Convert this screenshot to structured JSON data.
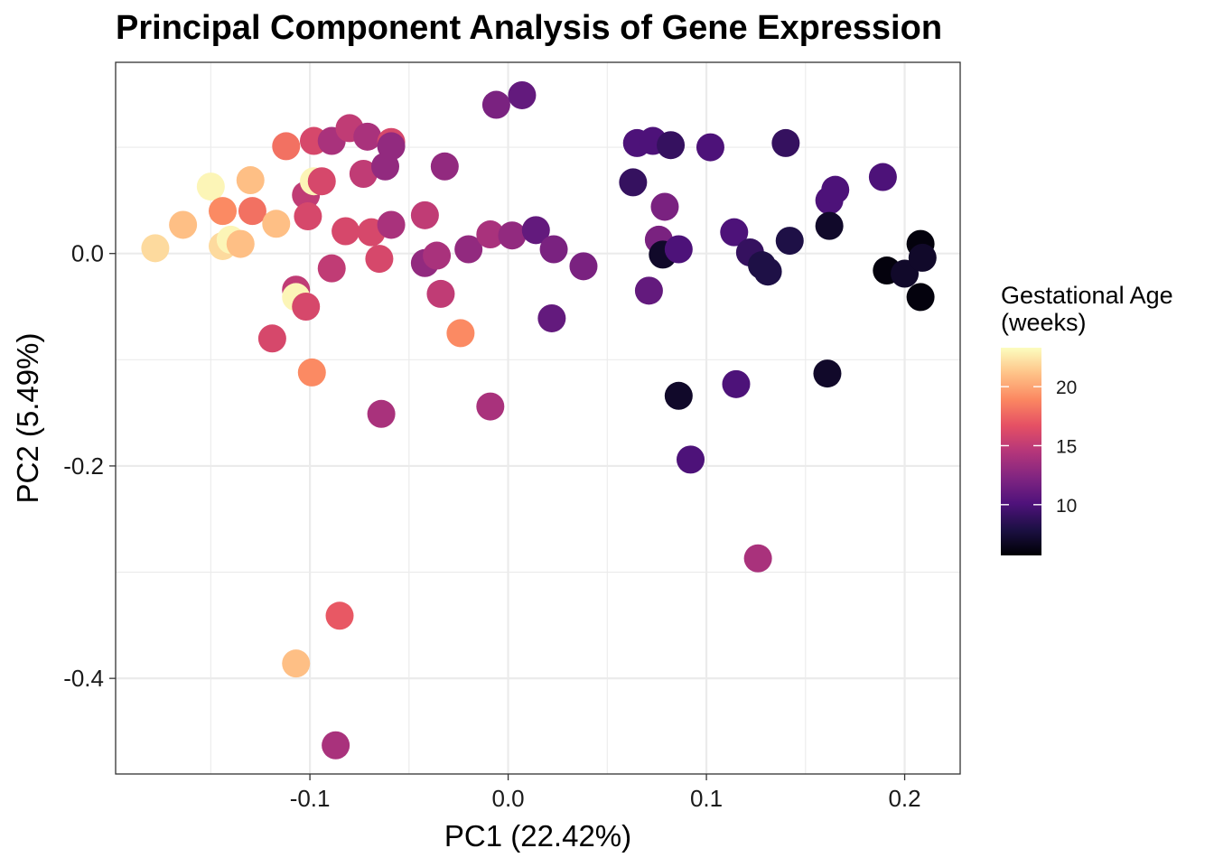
{
  "chart_data": {
    "type": "scatter",
    "title": "Principal Component Analysis of Gene Expression",
    "xlabel": "PC1 (22.42%)",
    "ylabel": "PC2 (5.49%)",
    "xlim": [
      -0.198,
      0.228
    ],
    "ylim": [
      -0.49,
      0.18
    ],
    "x_ticks": [
      -0.1,
      0.0,
      0.1,
      0.2
    ],
    "x_tick_labels": [
      "-0.1",
      "0.0",
      "0.1",
      "0.2"
    ],
    "y_ticks": [
      -0.4,
      -0.2,
      0.0
    ],
    "y_tick_labels": [
      "-0.4",
      "-0.2",
      "0.0"
    ],
    "grid": true,
    "legend": {
      "title_lines": [
        "Gestational Age",
        "(weeks)"
      ],
      "placement": "right",
      "colorbar_range": [
        5.7,
        23.3
      ],
      "ticks": [
        10,
        15,
        20
      ],
      "tick_labels": [
        "10",
        "15",
        "20"
      ]
    },
    "color_scale": [
      "#000004",
      "#1c1044",
      "#4f127b",
      "#812581",
      "#b5367a",
      "#e55064",
      "#fb8761",
      "#fec287",
      "#fcfdbf"
    ],
    "points": [
      {
        "x": -0.178,
        "y": 0.005,
        "age": 22
      },
      {
        "x": -0.164,
        "y": 0.027,
        "age": 21
      },
      {
        "x": -0.15,
        "y": 0.063,
        "age": 23
      },
      {
        "x": -0.144,
        "y": 0.04,
        "age": 19
      },
      {
        "x": -0.144,
        "y": 0.007,
        "age": 22
      },
      {
        "x": -0.14,
        "y": 0.013,
        "age": 23
      },
      {
        "x": -0.135,
        "y": 0.009,
        "age": 21
      },
      {
        "x": -0.13,
        "y": 0.069,
        "age": 21
      },
      {
        "x": -0.129,
        "y": 0.04,
        "age": 18
      },
      {
        "x": -0.117,
        "y": 0.028,
        "age": 21
      },
      {
        "x": -0.112,
        "y": 0.101,
        "age": 18
      },
      {
        "x": -0.119,
        "y": -0.08,
        "age": 16
      },
      {
        "x": -0.107,
        "y": -0.034,
        "age": 15
      },
      {
        "x": -0.107,
        "y": -0.041,
        "age": 23
      },
      {
        "x": -0.102,
        "y": -0.05,
        "age": 16
      },
      {
        "x": -0.102,
        "y": 0.055,
        "age": 15
      },
      {
        "x": -0.101,
        "y": 0.035,
        "age": 16
      },
      {
        "x": -0.099,
        "y": -0.112,
        "age": 19
      },
      {
        "x": -0.098,
        "y": 0.106,
        "age": 16
      },
      {
        "x": -0.098,
        "y": 0.068,
        "age": 23
      },
      {
        "x": -0.094,
        "y": 0.068,
        "age": 16
      },
      {
        "x": -0.089,
        "y": 0.106,
        "age": 14
      },
      {
        "x": -0.089,
        "y": -0.014,
        "age": 15
      },
      {
        "x": -0.085,
        "y": -0.341,
        "age": 17
      },
      {
        "x": -0.087,
        "y": -0.463,
        "age": 14
      },
      {
        "x": -0.082,
        "y": 0.021,
        "age": 16
      },
      {
        "x": -0.08,
        "y": 0.118,
        "age": 15
      },
      {
        "x": -0.073,
        "y": 0.075,
        "age": 15
      },
      {
        "x": -0.071,
        "y": 0.11,
        "age": 14
      },
      {
        "x": -0.069,
        "y": 0.02,
        "age": 16
      },
      {
        "x": -0.065,
        "y": -0.005,
        "age": 16
      },
      {
        "x": -0.064,
        "y": -0.151,
        "age": 14
      },
      {
        "x": -0.062,
        "y": 0.082,
        "age": 13
      },
      {
        "x": -0.059,
        "y": 0.105,
        "age": 16
      },
      {
        "x": -0.059,
        "y": 0.101,
        "age": 13
      },
      {
        "x": -0.059,
        "y": 0.027,
        "age": 14
      },
      {
        "x": -0.107,
        "y": -0.386,
        "age": 21
      },
      {
        "x": -0.042,
        "y": 0.036,
        "age": 15
      },
      {
        "x": -0.042,
        "y": -0.009,
        "age": 13
      },
      {
        "x": -0.036,
        "y": -0.002,
        "age": 14
      },
      {
        "x": -0.034,
        "y": -0.038,
        "age": 15
      },
      {
        "x": -0.032,
        "y": 0.082,
        "age": 13
      },
      {
        "x": -0.024,
        "y": -0.075,
        "age": 19
      },
      {
        "x": -0.02,
        "y": 0.004,
        "age": 13
      },
      {
        "x": -0.009,
        "y": 0.018,
        "age": 14
      },
      {
        "x": -0.009,
        "y": -0.144,
        "age": 14
      },
      {
        "x": -0.006,
        "y": 0.14,
        "age": 12
      },
      {
        "x": 0.002,
        "y": 0.017,
        "age": 13
      },
      {
        "x": 0.007,
        "y": 0.149,
        "age": 11
      },
      {
        "x": 0.014,
        "y": 0.022,
        "age": 11
      },
      {
        "x": 0.023,
        "y": 0.004,
        "age": 12
      },
      {
        "x": 0.022,
        "y": -0.061,
        "age": 11
      },
      {
        "x": 0.038,
        "y": -0.012,
        "age": 12
      },
      {
        "x": 0.063,
        "y": 0.067,
        "age": 9
      },
      {
        "x": 0.065,
        "y": 0.104,
        "age": 10
      },
      {
        "x": 0.071,
        "y": -0.035,
        "age": 11
      },
      {
        "x": 0.073,
        "y": 0.106,
        "age": 10
      },
      {
        "x": 0.076,
        "y": 0.013,
        "age": 12
      },
      {
        "x": 0.078,
        "y": -0.001,
        "age": 7
      },
      {
        "x": 0.079,
        "y": 0.044,
        "age": 12
      },
      {
        "x": 0.082,
        "y": 0.102,
        "age": 9
      },
      {
        "x": 0.086,
        "y": 0.004,
        "age": 10
      },
      {
        "x": 0.086,
        "y": -0.134,
        "age": 7
      },
      {
        "x": 0.092,
        "y": -0.194,
        "age": 10
      },
      {
        "x": 0.102,
        "y": 0.1,
        "age": 10
      },
      {
        "x": 0.114,
        "y": 0.02,
        "age": 10
      },
      {
        "x": 0.115,
        "y": -0.123,
        "age": 10
      },
      {
        "x": 0.122,
        "y": 0.001,
        "age": 9
      },
      {
        "x": 0.126,
        "y": -0.287,
        "age": 14
      },
      {
        "x": 0.128,
        "y": -0.011,
        "age": 8
      },
      {
        "x": 0.131,
        "y": -0.017,
        "age": 8
      },
      {
        "x": 0.14,
        "y": 0.104,
        "age": 9
      },
      {
        "x": 0.142,
        "y": 0.012,
        "age": 8
      },
      {
        "x": 0.161,
        "y": -0.113,
        "age": 7
      },
      {
        "x": 0.162,
        "y": 0.05,
        "age": 10
      },
      {
        "x": 0.162,
        "y": 0.026,
        "age": 7
      },
      {
        "x": 0.165,
        "y": 0.06,
        "age": 10
      },
      {
        "x": 0.189,
        "y": 0.072,
        "age": 10
      },
      {
        "x": 0.191,
        "y": -0.016,
        "age": 6
      },
      {
        "x": 0.2,
        "y": -0.019,
        "age": 7
      },
      {
        "x": 0.208,
        "y": 0.009,
        "age": 6
      },
      {
        "x": 0.209,
        "y": -0.004,
        "age": 7
      },
      {
        "x": 0.208,
        "y": -0.041,
        "age": 6
      }
    ]
  }
}
